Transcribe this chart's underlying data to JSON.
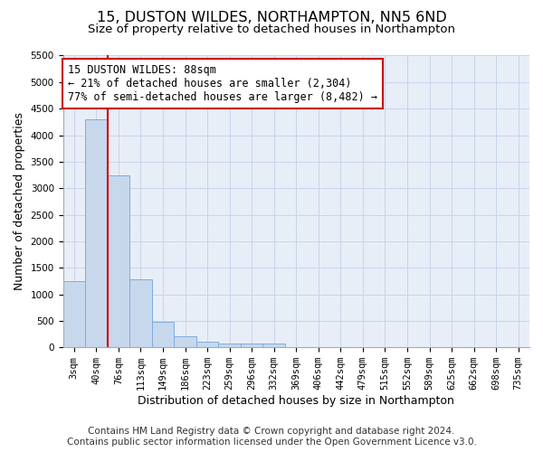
{
  "title": "15, DUSTON WILDES, NORTHAMPTON, NN5 6ND",
  "subtitle": "Size of property relative to detached houses in Northampton",
  "xlabel": "Distribution of detached houses by size in Northampton",
  "ylabel": "Number of detached properties",
  "categories": [
    "3sqm",
    "40sqm",
    "76sqm",
    "113sqm",
    "149sqm",
    "186sqm",
    "223sqm",
    "259sqm",
    "296sqm",
    "332sqm",
    "369sqm",
    "406sqm",
    "442sqm",
    "479sqm",
    "515sqm",
    "552sqm",
    "589sqm",
    "625sqm",
    "662sqm",
    "698sqm",
    "735sqm"
  ],
  "values": [
    1250,
    4300,
    3250,
    1280,
    480,
    200,
    100,
    70,
    70,
    65,
    0,
    0,
    0,
    0,
    0,
    0,
    0,
    0,
    0,
    0,
    0
  ],
  "bar_color": "#c8d8ec",
  "bar_edge_color": "#7aade0",
  "vline_color": "#cc0000",
  "annotation_text": "15 DUSTON WILDES: 88sqm\n← 21% of detached houses are smaller (2,304)\n77% of semi-detached houses are larger (8,482) →",
  "annotation_box_color": "#ffffff",
  "annotation_box_edge_color": "#cc0000",
  "ylim": [
    0,
    5500
  ],
  "yticks": [
    0,
    500,
    1000,
    1500,
    2000,
    2500,
    3000,
    3500,
    4000,
    4500,
    5000,
    5500
  ],
  "footer_line1": "Contains HM Land Registry data © Crown copyright and database right 2024.",
  "footer_line2": "Contains public sector information licensed under the Open Government Licence v3.0.",
  "bg_color": "#ffffff",
  "plot_bg_color": "#e8eef8",
  "grid_color": "#c8d4e8",
  "title_fontsize": 11.5,
  "subtitle_fontsize": 9.5,
  "axis_label_fontsize": 9,
  "tick_fontsize": 7.5,
  "footer_fontsize": 7.5,
  "annotation_fontsize": 8.5
}
